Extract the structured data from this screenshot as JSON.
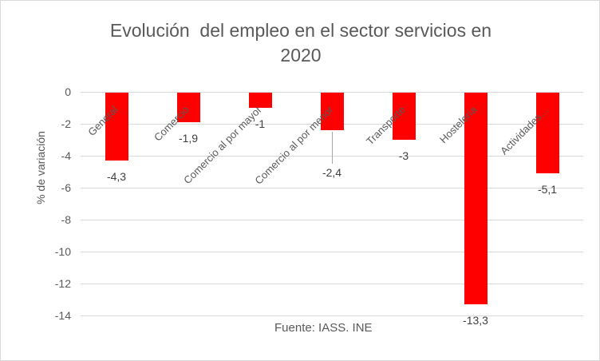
{
  "header": {
    "title_line1": "Evolución  del empleo en el sector servicios en",
    "title_line2": "2020"
  },
  "chart_data": {
    "type": "bar",
    "title": "Evolución del empleo en el sector servicios en 2020",
    "xlabel": "",
    "ylabel": "% de variación",
    "source": "Fuente: IASS. INE",
    "categories": [
      "General",
      "Comercio",
      "Comercio al por mayor",
      "Comercio al por menor",
      "Transporte",
      "Hostelería",
      "Actividades…"
    ],
    "values": [
      -4.3,
      -1.9,
      -1,
      -2.4,
      -3,
      -13.3,
      -5.1
    ],
    "data_labels": [
      "-4,3",
      "-1,9",
      "-1",
      "-2,4",
      "-3",
      "-13,3",
      "-5,1"
    ],
    "data_label_leader_indices": [
      3
    ],
    "yticks": [
      0,
      -2,
      -4,
      -6,
      -8,
      -10,
      -12,
      -14
    ],
    "ytick_labels": [
      "0",
      "-2",
      "-4",
      "-6",
      "-8",
      "-10",
      "-12",
      "-14"
    ],
    "ylim": [
      -14,
      0
    ],
    "bar_color": "#ff0000",
    "grid_color": "#d9d9d9",
    "legend": "none",
    "grid": "horizontal"
  }
}
